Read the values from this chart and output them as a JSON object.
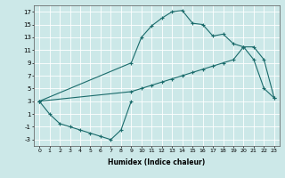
{
  "xlabel": "Humidex (Indice chaleur)",
  "background_color": "#cce8e8",
  "grid_color": "#ffffff",
  "line_color": "#1a6b6b",
  "xlim": [
    -0.5,
    23.5
  ],
  "ylim": [
    -4,
    18
  ],
  "yticks": [
    -3,
    -1,
    1,
    3,
    5,
    7,
    9,
    11,
    13,
    15,
    17
  ],
  "line1_x": [
    0,
    1,
    2,
    3,
    4,
    5,
    6,
    7,
    8,
    9
  ],
  "line1_y": [
    3,
    1,
    -0.5,
    -1,
    -1.5,
    -2,
    -2.5,
    -3,
    -1.5,
    3
  ],
  "line2_x": [
    0,
    9,
    10,
    11,
    12,
    13,
    14,
    15,
    16,
    17,
    18,
    19,
    20,
    21,
    22,
    23
  ],
  "line2_y": [
    3,
    9,
    13,
    14.8,
    16,
    17,
    17.2,
    15.2,
    15,
    13.2,
    13.5,
    12,
    11.5,
    9.5,
    5,
    3.5
  ],
  "line3_x": [
    0,
    9,
    10,
    11,
    12,
    13,
    14,
    15,
    16,
    17,
    18,
    19,
    20,
    21,
    22,
    23
  ],
  "line3_y": [
    3,
    4.5,
    5,
    5.5,
    6,
    6.5,
    7,
    7.5,
    8,
    8.5,
    9,
    9.5,
    11.5,
    11.5,
    9.5,
    3.5
  ]
}
